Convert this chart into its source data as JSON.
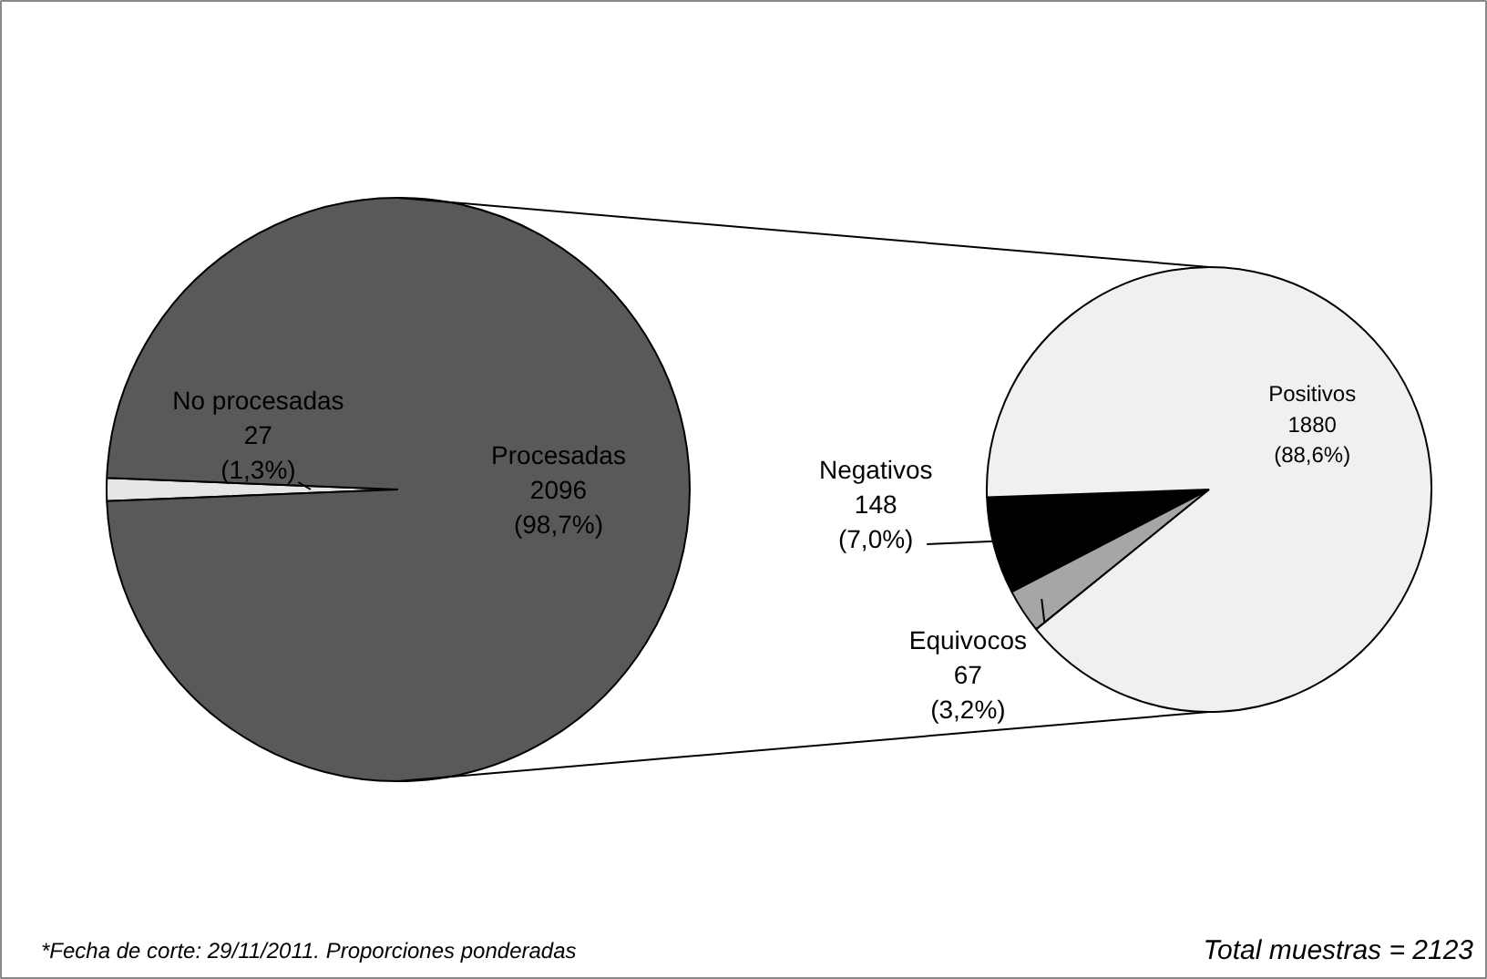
{
  "chart_data": [
    {
      "type": "pie",
      "categories": [
        "No procesadas",
        "Procesadas"
      ],
      "values": [
        27,
        2096
      ],
      "colors": [
        "#e6e6e6",
        "#595959"
      ],
      "value_labels": [
        "27\n(1,3%)",
        "2096\n(98,7%)"
      ],
      "annotations": [
        "*Fecha de corte: 29/11/2011. Proporciones ponderadas"
      ]
    },
    {
      "type": "pie",
      "categories": [
        "Negativos",
        "Equivocos",
        "Positivos"
      ],
      "values": [
        148,
        67,
        1880
      ],
      "colors": [
        "#000000",
        "#a6a6a6",
        "#f0f0f0"
      ],
      "value_labels": [
        "148\n(7,0%)",
        "67\n(3,2%)",
        "1880\n(88,6%)"
      ],
      "annotations": [
        "Total muestras = 2123"
      ]
    }
  ]
}
